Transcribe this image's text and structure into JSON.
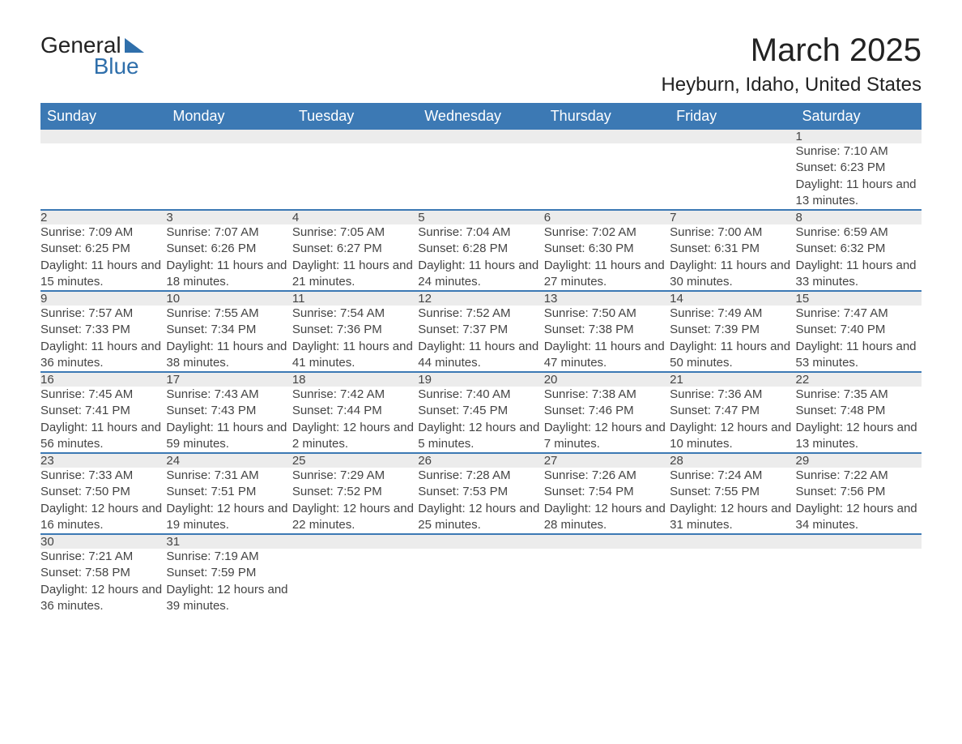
{
  "logo": {
    "line1": "General",
    "line2": "Blue"
  },
  "title": "March 2025",
  "location": "Heyburn, Idaho, United States",
  "colors": {
    "header_bg": "#3c79b4",
    "header_text": "#ffffff",
    "daynum_bg": "#ececec",
    "border": "#3c79b4",
    "text": "#444444",
    "page_bg": "#ffffff"
  },
  "day_headers": [
    "Sunday",
    "Monday",
    "Tuesday",
    "Wednesday",
    "Thursday",
    "Friday",
    "Saturday"
  ],
  "weeks": [
    [
      {
        "n": "",
        "sr": "",
        "ss": "",
        "dl": ""
      },
      {
        "n": "",
        "sr": "",
        "ss": "",
        "dl": ""
      },
      {
        "n": "",
        "sr": "",
        "ss": "",
        "dl": ""
      },
      {
        "n": "",
        "sr": "",
        "ss": "",
        "dl": ""
      },
      {
        "n": "",
        "sr": "",
        "ss": "",
        "dl": ""
      },
      {
        "n": "",
        "sr": "",
        "ss": "",
        "dl": ""
      },
      {
        "n": "1",
        "sr": "Sunrise: 7:10 AM",
        "ss": "Sunset: 6:23 PM",
        "dl": "Daylight: 11 hours and 13 minutes."
      }
    ],
    [
      {
        "n": "2",
        "sr": "Sunrise: 7:09 AM",
        "ss": "Sunset: 6:25 PM",
        "dl": "Daylight: 11 hours and 15 minutes."
      },
      {
        "n": "3",
        "sr": "Sunrise: 7:07 AM",
        "ss": "Sunset: 6:26 PM",
        "dl": "Daylight: 11 hours and 18 minutes."
      },
      {
        "n": "4",
        "sr": "Sunrise: 7:05 AM",
        "ss": "Sunset: 6:27 PM",
        "dl": "Daylight: 11 hours and 21 minutes."
      },
      {
        "n": "5",
        "sr": "Sunrise: 7:04 AM",
        "ss": "Sunset: 6:28 PM",
        "dl": "Daylight: 11 hours and 24 minutes."
      },
      {
        "n": "6",
        "sr": "Sunrise: 7:02 AM",
        "ss": "Sunset: 6:30 PM",
        "dl": "Daylight: 11 hours and 27 minutes."
      },
      {
        "n": "7",
        "sr": "Sunrise: 7:00 AM",
        "ss": "Sunset: 6:31 PM",
        "dl": "Daylight: 11 hours and 30 minutes."
      },
      {
        "n": "8",
        "sr": "Sunrise: 6:59 AM",
        "ss": "Sunset: 6:32 PM",
        "dl": "Daylight: 11 hours and 33 minutes."
      }
    ],
    [
      {
        "n": "9",
        "sr": "Sunrise: 7:57 AM",
        "ss": "Sunset: 7:33 PM",
        "dl": "Daylight: 11 hours and 36 minutes."
      },
      {
        "n": "10",
        "sr": "Sunrise: 7:55 AM",
        "ss": "Sunset: 7:34 PM",
        "dl": "Daylight: 11 hours and 38 minutes."
      },
      {
        "n": "11",
        "sr": "Sunrise: 7:54 AM",
        "ss": "Sunset: 7:36 PM",
        "dl": "Daylight: 11 hours and 41 minutes."
      },
      {
        "n": "12",
        "sr": "Sunrise: 7:52 AM",
        "ss": "Sunset: 7:37 PM",
        "dl": "Daylight: 11 hours and 44 minutes."
      },
      {
        "n": "13",
        "sr": "Sunrise: 7:50 AM",
        "ss": "Sunset: 7:38 PM",
        "dl": "Daylight: 11 hours and 47 minutes."
      },
      {
        "n": "14",
        "sr": "Sunrise: 7:49 AM",
        "ss": "Sunset: 7:39 PM",
        "dl": "Daylight: 11 hours and 50 minutes."
      },
      {
        "n": "15",
        "sr": "Sunrise: 7:47 AM",
        "ss": "Sunset: 7:40 PM",
        "dl": "Daylight: 11 hours and 53 minutes."
      }
    ],
    [
      {
        "n": "16",
        "sr": "Sunrise: 7:45 AM",
        "ss": "Sunset: 7:41 PM",
        "dl": "Daylight: 11 hours and 56 minutes."
      },
      {
        "n": "17",
        "sr": "Sunrise: 7:43 AM",
        "ss": "Sunset: 7:43 PM",
        "dl": "Daylight: 11 hours and 59 minutes."
      },
      {
        "n": "18",
        "sr": "Sunrise: 7:42 AM",
        "ss": "Sunset: 7:44 PM",
        "dl": "Daylight: 12 hours and 2 minutes."
      },
      {
        "n": "19",
        "sr": "Sunrise: 7:40 AM",
        "ss": "Sunset: 7:45 PM",
        "dl": "Daylight: 12 hours and 5 minutes."
      },
      {
        "n": "20",
        "sr": "Sunrise: 7:38 AM",
        "ss": "Sunset: 7:46 PM",
        "dl": "Daylight: 12 hours and 7 minutes."
      },
      {
        "n": "21",
        "sr": "Sunrise: 7:36 AM",
        "ss": "Sunset: 7:47 PM",
        "dl": "Daylight: 12 hours and 10 minutes."
      },
      {
        "n": "22",
        "sr": "Sunrise: 7:35 AM",
        "ss": "Sunset: 7:48 PM",
        "dl": "Daylight: 12 hours and 13 minutes."
      }
    ],
    [
      {
        "n": "23",
        "sr": "Sunrise: 7:33 AM",
        "ss": "Sunset: 7:50 PM",
        "dl": "Daylight: 12 hours and 16 minutes."
      },
      {
        "n": "24",
        "sr": "Sunrise: 7:31 AM",
        "ss": "Sunset: 7:51 PM",
        "dl": "Daylight: 12 hours and 19 minutes."
      },
      {
        "n": "25",
        "sr": "Sunrise: 7:29 AM",
        "ss": "Sunset: 7:52 PM",
        "dl": "Daylight: 12 hours and 22 minutes."
      },
      {
        "n": "26",
        "sr": "Sunrise: 7:28 AM",
        "ss": "Sunset: 7:53 PM",
        "dl": "Daylight: 12 hours and 25 minutes."
      },
      {
        "n": "27",
        "sr": "Sunrise: 7:26 AM",
        "ss": "Sunset: 7:54 PM",
        "dl": "Daylight: 12 hours and 28 minutes."
      },
      {
        "n": "28",
        "sr": "Sunrise: 7:24 AM",
        "ss": "Sunset: 7:55 PM",
        "dl": "Daylight: 12 hours and 31 minutes."
      },
      {
        "n": "29",
        "sr": "Sunrise: 7:22 AM",
        "ss": "Sunset: 7:56 PM",
        "dl": "Daylight: 12 hours and 34 minutes."
      }
    ],
    [
      {
        "n": "30",
        "sr": "Sunrise: 7:21 AM",
        "ss": "Sunset: 7:58 PM",
        "dl": "Daylight: 12 hours and 36 minutes."
      },
      {
        "n": "31",
        "sr": "Sunrise: 7:19 AM",
        "ss": "Sunset: 7:59 PM",
        "dl": "Daylight: 12 hours and 39 minutes."
      },
      {
        "n": "",
        "sr": "",
        "ss": "",
        "dl": ""
      },
      {
        "n": "",
        "sr": "",
        "ss": "",
        "dl": ""
      },
      {
        "n": "",
        "sr": "",
        "ss": "",
        "dl": ""
      },
      {
        "n": "",
        "sr": "",
        "ss": "",
        "dl": ""
      },
      {
        "n": "",
        "sr": "",
        "ss": "",
        "dl": ""
      }
    ]
  ]
}
